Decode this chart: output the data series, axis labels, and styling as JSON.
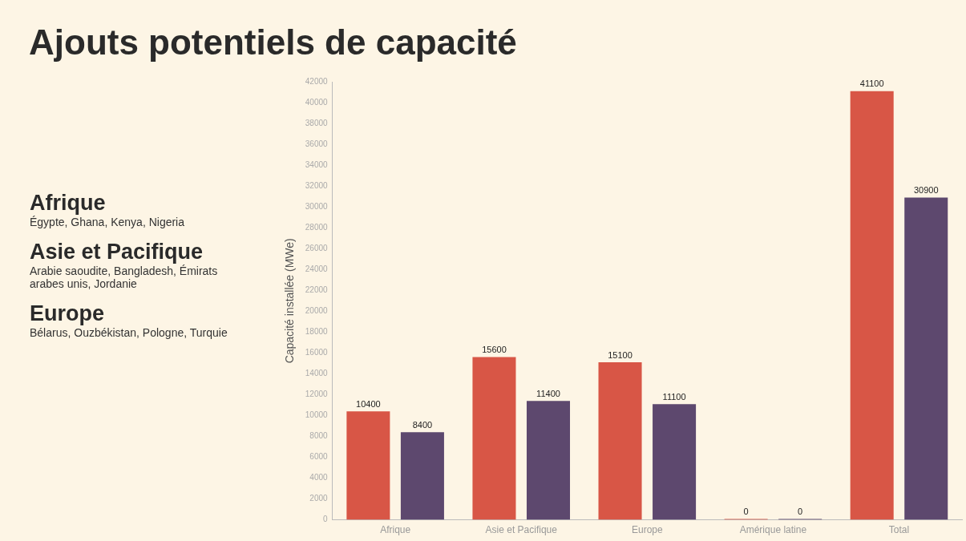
{
  "chart_data": {
    "type": "bar",
    "title": "Ajouts potentiels de capacité",
    "ylabel": "Capacité installée (MWe)",
    "categories": [
      "Afrique",
      "Asie et Pacifique",
      "Europe",
      "Amérique latine",
      "Total"
    ],
    "series": [
      {
        "color": "#d85646",
        "values": [
          10400,
          15600,
          15100,
          0,
          41100
        ]
      },
      {
        "color": "#5d486e",
        "values": [
          8400,
          11400,
          11100,
          0,
          30900
        ]
      }
    ],
    "ylim": [
      0,
      42000
    ],
    "yticks": [
      0,
      2000,
      4000,
      6000,
      8000,
      10000,
      12000,
      14000,
      16000,
      18000,
      20000,
      22000,
      24000,
      26000,
      28000,
      30000,
      32000,
      34000,
      36000,
      38000,
      40000,
      42000
    ],
    "grid": false,
    "legend": false,
    "data_labels": true,
    "annotations": [
      "Afrique",
      "Égypte, Ghana, Kenya, Nigeria",
      "Asie et Pacifique",
      "Arabie saoudite, Bangladesh, Émirats arabes unis, Jordanie",
      "Europe",
      "Bélarus, Ouzbékistan, Pologne, Turquie"
    ]
  }
}
